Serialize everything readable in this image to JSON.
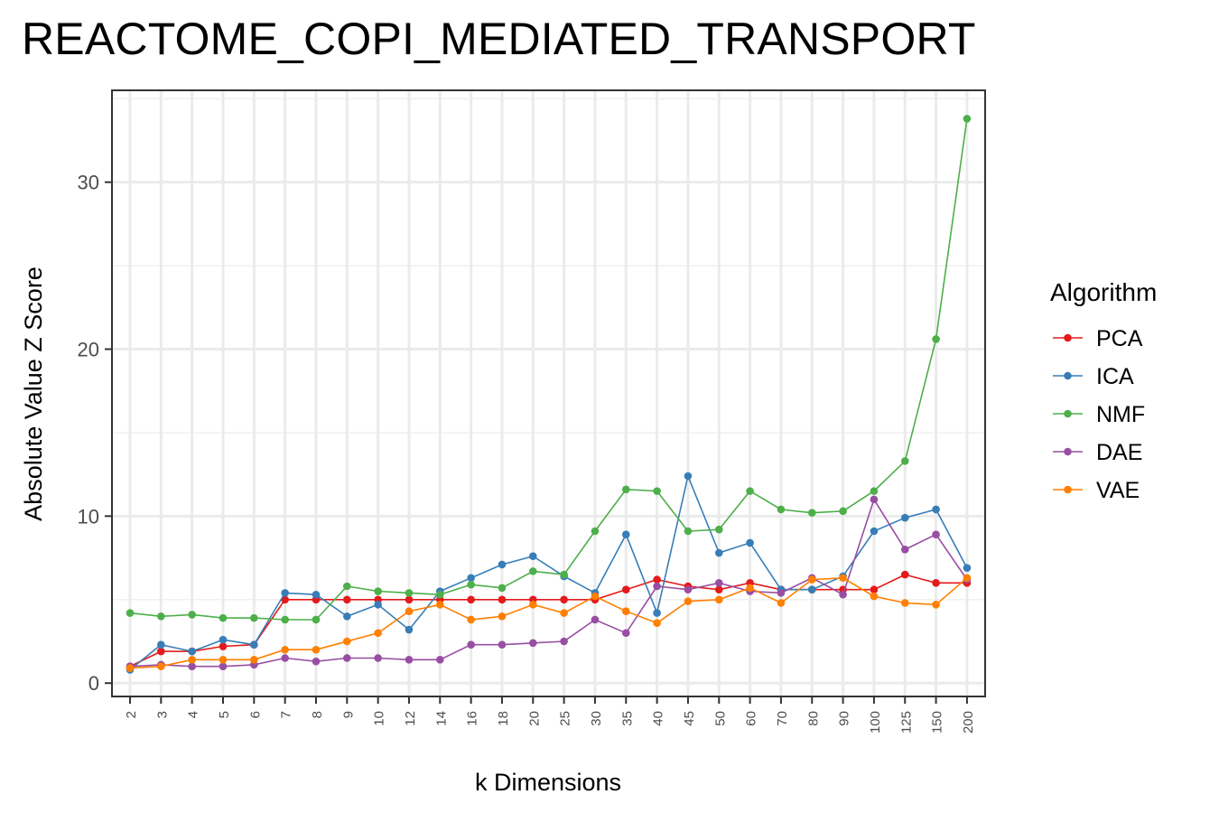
{
  "chart_data": {
    "type": "line",
    "title": "REACTOME_COPI_MEDIATED_TRANSPORT",
    "xlabel": "k Dimensions",
    "ylabel": "Absolute Value Z Score",
    "categories": [
      "2",
      "3",
      "4",
      "5",
      "6",
      "7",
      "8",
      "9",
      "10",
      "12",
      "14",
      "16",
      "18",
      "20",
      "25",
      "30",
      "35",
      "40",
      "45",
      "50",
      "60",
      "70",
      "80",
      "90",
      "100",
      "125",
      "150",
      "200"
    ],
    "yticks": [
      "0",
      "10",
      "20",
      "30"
    ],
    "ylim": [
      -0.8,
      35.5
    ],
    "grid": true,
    "legend": {
      "title": "Algorithm",
      "position": "right"
    },
    "series": [
      {
        "name": "PCA",
        "color": "#E41A1C",
        "values": [
          1.0,
          1.9,
          1.9,
          2.2,
          2.3,
          5.0,
          5.0,
          5.0,
          5.0,
          5.0,
          5.0,
          5.0,
          5.0,
          5.0,
          5.0,
          5.0,
          5.6,
          6.2,
          5.8,
          5.6,
          6.0,
          5.6,
          5.6,
          5.6,
          5.6,
          6.5,
          6.0,
          6.0
        ]
      },
      {
        "name": "ICA",
        "color": "#377EB8",
        "values": [
          0.8,
          2.3,
          1.9,
          2.6,
          2.3,
          5.4,
          5.3,
          4.0,
          4.7,
          3.2,
          5.5,
          6.3,
          7.1,
          7.6,
          6.4,
          5.4,
          8.9,
          4.2,
          12.4,
          7.8,
          8.4,
          5.6,
          5.6,
          6.4,
          9.1,
          9.9,
          10.4,
          6.9
        ]
      },
      {
        "name": "NMF",
        "color": "#4DAF4A",
        "values": [
          4.2,
          4.0,
          4.1,
          3.9,
          3.9,
          3.8,
          3.8,
          5.8,
          5.5,
          5.4,
          5.3,
          5.9,
          5.7,
          6.7,
          6.5,
          9.1,
          11.6,
          11.5,
          9.1,
          9.2,
          11.5,
          10.4,
          10.2,
          10.3,
          11.5,
          13.3,
          20.6,
          33.8
        ]
      },
      {
        "name": "DAE",
        "color": "#984EA3",
        "values": [
          1.0,
          1.1,
          1.0,
          1.0,
          1.1,
          1.5,
          1.3,
          1.5,
          1.5,
          1.4,
          1.4,
          2.3,
          2.3,
          2.4,
          2.5,
          3.8,
          3.0,
          5.8,
          5.6,
          6.0,
          5.5,
          5.4,
          6.3,
          5.3,
          11.0,
          8.0,
          8.9,
          6.2
        ]
      },
      {
        "name": "VAE",
        "color": "#FF7F00",
        "values": [
          0.9,
          1.0,
          1.4,
          1.4,
          1.4,
          2.0,
          2.0,
          2.5,
          3.0,
          4.3,
          4.7,
          3.8,
          4.0,
          4.7,
          4.2,
          5.2,
          4.3,
          3.6,
          4.9,
          5.0,
          5.7,
          4.8,
          6.2,
          6.3,
          5.2,
          4.8,
          4.7,
          6.3
        ]
      }
    ]
  }
}
